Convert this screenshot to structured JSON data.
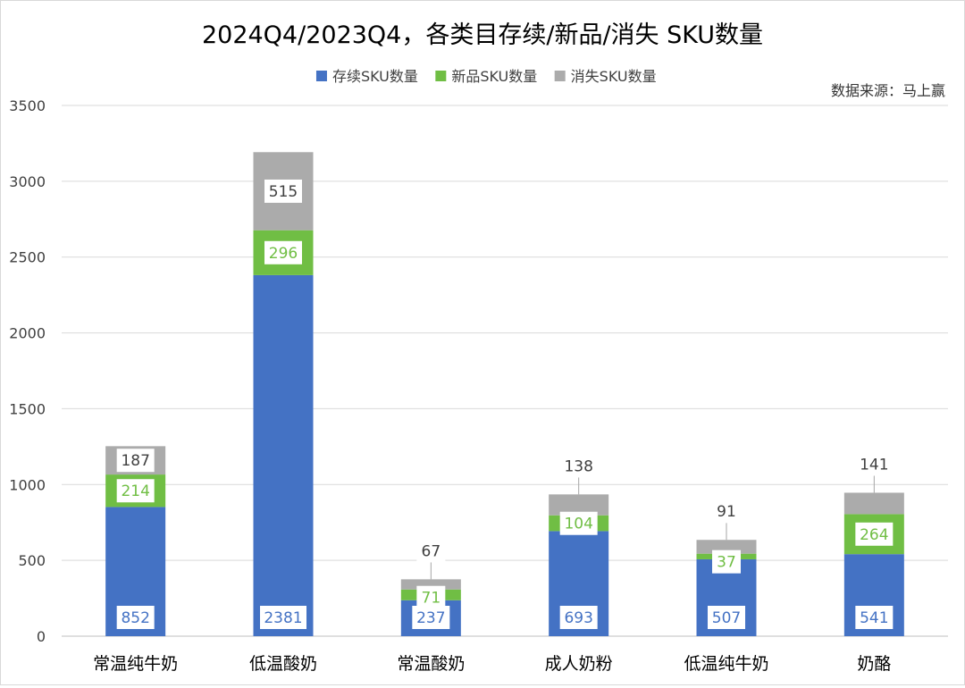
{
  "chart_data": {
    "type": "bar",
    "stacked": true,
    "title": "2024Q4/2023Q4，各类目存续/新品/消失 SKU数量",
    "source": "数据来源：马上赢",
    "xlabel": "",
    "ylabel": "",
    "ylim": [
      0,
      3500
    ],
    "yticks": [
      0,
      500,
      1000,
      1500,
      2000,
      2500,
      3000,
      3500
    ],
    "grid": true,
    "legend_position": "top",
    "categories": [
      "常温纯牛奶",
      "低温酸奶",
      "常温酸奶",
      "成人奶粉",
      "低温纯牛奶",
      "奶酪"
    ],
    "series": [
      {
        "name": "存续SKU数量",
        "color": "#4472C4",
        "values": [
          852,
          2381,
          237,
          693,
          507,
          541
        ]
      },
      {
        "name": "新品SKU数量",
        "color": "#70BE44",
        "values": [
          214,
          296,
          71,
          104,
          37,
          264
        ]
      },
      {
        "name": "消失SKU数量",
        "color": "#ABABAB",
        "values": [
          187,
          515,
          67,
          138,
          91,
          141
        ]
      }
    ]
  }
}
